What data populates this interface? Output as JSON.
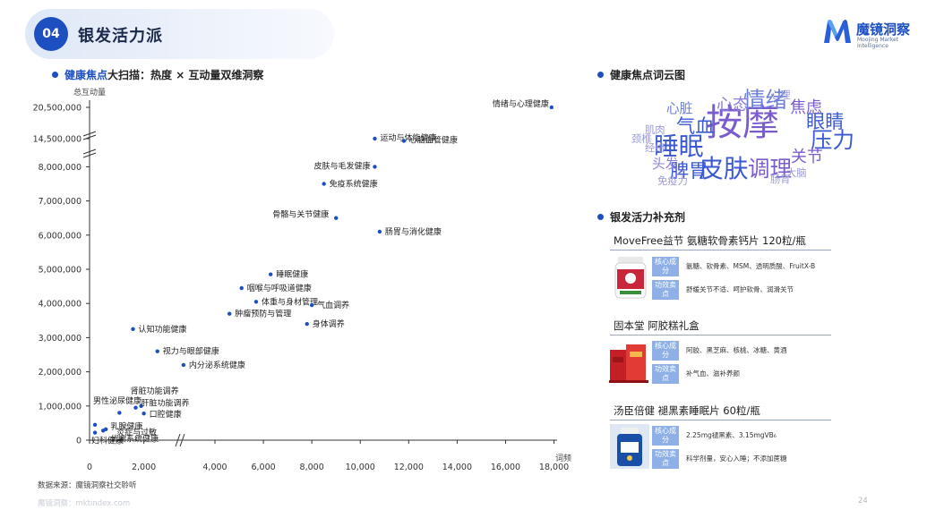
{
  "header": {
    "section_number": "04",
    "section_title": "银发活力派"
  },
  "logo": {
    "name": "魔镜洞察",
    "subtitle": "Moojing Market Intelligence",
    "brand_color": "#1d4fc0"
  },
  "scatter_section": {
    "title_highlight": "健康焦点",
    "title_rest": "大扫描：热度 × 互动量双维洞察"
  },
  "wordcloud_section": {
    "title": "健康焦点词云图",
    "words": [
      {
        "text": "按摩",
        "weight": 10,
        "color": "#7b5ccf"
      },
      {
        "text": "睡眠",
        "weight": 6,
        "color": "#3b5ad2"
      },
      {
        "text": "皮肤",
        "weight": 6,
        "color": "#3b5ad2"
      },
      {
        "text": "情绪",
        "weight": 5,
        "color": "#6a7fd8"
      },
      {
        "text": "调理",
        "weight": 5,
        "color": "#7b5ccf"
      },
      {
        "text": "压力",
        "weight": 5,
        "color": "#3b5ad2"
      },
      {
        "text": "气血",
        "weight": 4,
        "color": "#3b5ad2"
      },
      {
        "text": "脾胃",
        "weight": 4,
        "color": "#3b5ad2"
      },
      {
        "text": "眼睛",
        "weight": 4,
        "color": "#3b5ad2"
      },
      {
        "text": "焦虑",
        "weight": 3,
        "color": "#7b5ccf"
      },
      {
        "text": "心态",
        "weight": 3,
        "color": "#8d7fd9"
      },
      {
        "text": "关节",
        "weight": 3,
        "color": "#7b5ccf"
      },
      {
        "text": "心脏",
        "weight": 2,
        "color": "#6a7fd8"
      },
      {
        "text": "头发",
        "weight": 2,
        "color": "#8d7fd9"
      },
      {
        "text": "肌肉",
        "weight": 1,
        "color": "#9a9ad8"
      },
      {
        "text": "经络",
        "weight": 1,
        "color": "#9a9ad8"
      },
      {
        "text": "大脑",
        "weight": 1,
        "color": "#9a9ad8"
      },
      {
        "text": "肠胃",
        "weight": 1,
        "color": "#9a9ad8"
      },
      {
        "text": "颈椎",
        "weight": 1,
        "color": "#9a9ad8"
      },
      {
        "text": "免疫力",
        "weight": 1,
        "color": "#9a9ad8"
      },
      {
        "text": "心理",
        "weight": 1,
        "color": "#9a9ad8"
      }
    ]
  },
  "supplements_section": {
    "title": "银发活力补充剂",
    "tag_core": "核心成分",
    "tag_effect": "功效卖点",
    "products": [
      {
        "name": "MoveFree益节 氨糖软骨素钙片 120粒/瓶",
        "core": "氨糖、软骨素、MSM、透明质酸、FruitX-B",
        "effect": "舒缓关节不适、呵护软骨、润滑关节",
        "image_color": "#c8263a"
      },
      {
        "name": "固本堂 阿胶糕礼盒",
        "core": "阿胶、黑芝麻、核桃、冰糖、黄酒",
        "effect": "补气血、滋补养颜",
        "image_color": "#d8322e"
      },
      {
        "name": "汤臣倍健 褪黑素睡眠片 60粒/瓶",
        "core": "2.25mg褪黑素、3.15mgVB₆",
        "effect": "科学剂量，安心入睡；不添加蔗糖",
        "image_color": "#1a4fa8"
      }
    ]
  },
  "chart_data": {
    "type": "scatter",
    "xlabel": "词频",
    "ylabel": "总互动量",
    "x_ticks": [
      "0",
      "2,000",
      "4,000",
      "6,000",
      "8,000",
      "10,000",
      "12,000",
      "14,000",
      "16,000",
      "18,000"
    ],
    "x_axis_break": "between 2,000 and 4,000",
    "y_ticks": [
      "0",
      "1,000,000",
      "2,000,000",
      "3,000,000",
      "4,000,000",
      "5,000,000",
      "6,000,000",
      "7,000,000",
      "8,000,000",
      "14,500,000",
      "20,500,000"
    ],
    "y_axis_breaks": [
      "between 8,000,000 and 14,500,000",
      "between 14,500,000 and 20,500,000"
    ],
    "grid": false,
    "point_color": "#1d4fc0",
    "points": [
      {
        "label": "情绪与心理健康",
        "x": 17900,
        "y": 20500000
      },
      {
        "label": "运动与体能健康",
        "x": 10600,
        "y": 14500000
      },
      {
        "label": "心脑血管健康",
        "x": 11800,
        "y": 14000000
      },
      {
        "label": "皮肤与毛发健康",
        "x": 10600,
        "y": 8000000
      },
      {
        "label": "免疫系统健康",
        "x": 8500,
        "y": 7500000
      },
      {
        "label": "骨骼与关节健康",
        "x": 9000,
        "y": 6500000
      },
      {
        "label": "肠胃与消化健康",
        "x": 10800,
        "y": 6100000
      },
      {
        "label": "睡眠健康",
        "x": 6300,
        "y": 4850000
      },
      {
        "label": "咽喉与呼吸道健康",
        "x": 5100,
        "y": 4450000
      },
      {
        "label": "体重与身材管理",
        "x": 5700,
        "y": 4050000
      },
      {
        "label": "气血调养",
        "x": 8000,
        "y": 3950000
      },
      {
        "label": "肿瘤预防与管理",
        "x": 4600,
        "y": 3700000
      },
      {
        "label": "身体调养",
        "x": 7800,
        "y": 3400000
      },
      {
        "label": "认知功能健康",
        "x": 1600,
        "y": 3250000
      },
      {
        "label": "视力与眼部健康",
        "x": 2500,
        "y": 2600000
      },
      {
        "label": "内分泌系统健康",
        "x": 2700,
        "y": 2200000
      },
      {
        "label": "肾脏功能调养",
        "x": 1900,
        "y": 1000000
      },
      {
        "label": "肝脏功能调养",
        "x": 1700,
        "y": 950000
      },
      {
        "label": "男性泌尿健康",
        "x": 200,
        "y": 450000
      },
      {
        "label": "口腔健康",
        "x": 2000,
        "y": 780000
      },
      {
        "label": "乳腺健康",
        "x": 1100,
        "y": 800000
      },
      {
        "label": "炎症与过敏",
        "x": 600,
        "y": 320000
      },
      {
        "label": "妇科健康",
        "x": 200,
        "y": 220000
      },
      {
        "label": "代谢系统健康",
        "x": 500,
        "y": 280000
      }
    ]
  },
  "footer": {
    "source": "数据来源：魔镜洞察社交聆听",
    "url": "魔镜洞察：mktindex.com",
    "page": "24"
  }
}
